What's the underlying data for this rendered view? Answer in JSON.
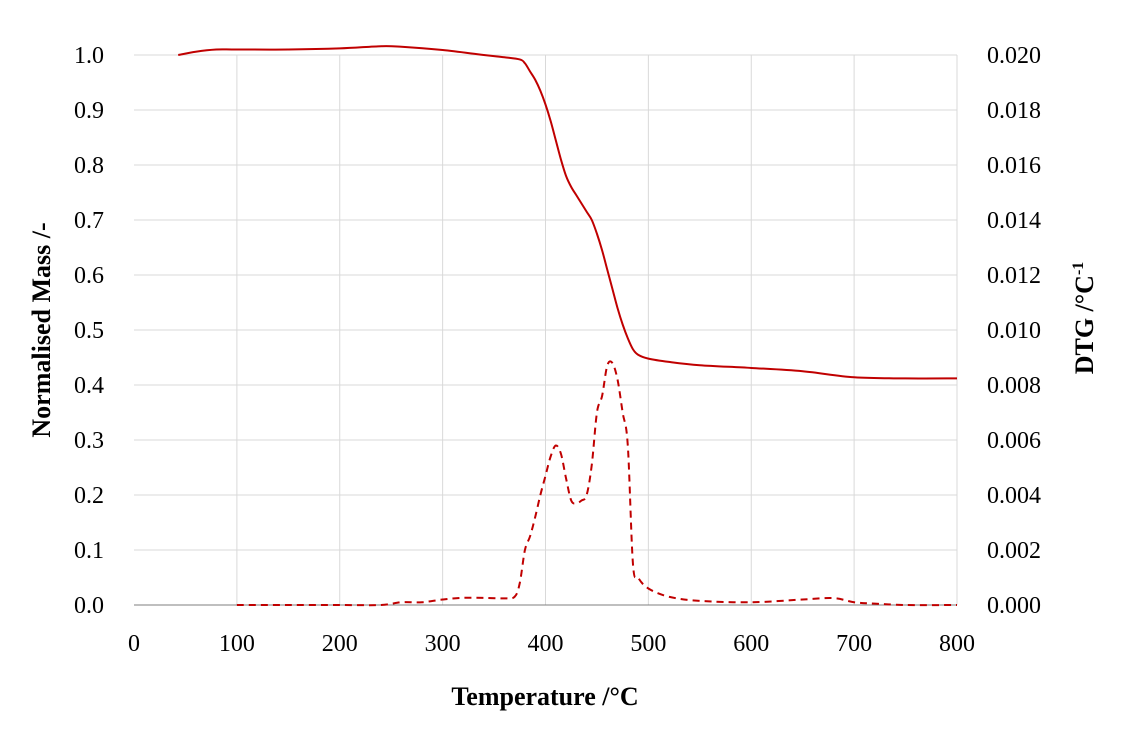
{
  "chart_data": {
    "type": "line",
    "title": "",
    "xlabel": "Temperature /°C",
    "ylabel": "Normalised Mass /-",
    "y2label_main": "DTG  /°C",
    "y2label_sup": "-1",
    "xlim": [
      0,
      800
    ],
    "ylim": [
      0,
      1.0
    ],
    "y2lim": [
      0,
      0.02
    ],
    "xticks": [
      "0",
      "100",
      "200",
      "300",
      "400",
      "500",
      "600",
      "700",
      "800"
    ],
    "yticks": [
      "0.0",
      "0.1",
      "0.2",
      "0.3",
      "0.4",
      "0.5",
      "0.6",
      "0.7",
      "0.8",
      "0.9",
      "1.0"
    ],
    "y2ticks": [
      "0.000",
      "0.002",
      "0.004",
      "0.006",
      "0.008",
      "0.010",
      "0.012",
      "0.014",
      "0.016",
      "0.018",
      "0.020"
    ],
    "grid": true,
    "colors": {
      "series": "#c00000",
      "grid": "#d9d9d9",
      "axis": "#7f7f7f"
    },
    "series": [
      {
        "axis": "left",
        "style": "solid",
        "x": [
          43,
          60,
          80,
          100,
          150,
          200,
          240,
          260,
          300,
          340,
          360,
          375,
          380,
          385,
          390,
          395,
          400,
          405,
          410,
          415,
          420,
          425,
          430,
          435,
          440,
          445,
          450,
          455,
          460,
          465,
          470,
          475,
          480,
          485,
          490,
          500,
          520,
          550,
          600,
          650,
          700,
          750,
          800
        ],
        "y": [
          1.0,
          1.006,
          1.01,
          1.01,
          1.01,
          1.012,
          1.016,
          1.015,
          1.009,
          1.0,
          0.996,
          0.992,
          0.985,
          0.97,
          0.955,
          0.935,
          0.91,
          0.88,
          0.845,
          0.81,
          0.78,
          0.76,
          0.745,
          0.73,
          0.715,
          0.7,
          0.675,
          0.645,
          0.61,
          0.575,
          0.54,
          0.51,
          0.485,
          0.465,
          0.455,
          0.448,
          0.442,
          0.436,
          0.431,
          0.425,
          0.414,
          0.412,
          0.412
        ]
      },
      {
        "axis": "right",
        "style": "dashed",
        "x": [
          100,
          150,
          200,
          240,
          260,
          280,
          300,
          320,
          340,
          360,
          370,
          375,
          380,
          385,
          390,
          395,
          400,
          405,
          410,
          415,
          420,
          425,
          430,
          435,
          440,
          445,
          450,
          455,
          460,
          465,
          470,
          475,
          480,
          485,
          490,
          500,
          520,
          550,
          600,
          650,
          680,
          700,
          720,
          750,
          800
        ],
        "y": [
          0.0,
          0.0,
          0.0,
          0.0,
          0.0001,
          0.0001,
          0.0002,
          0.00026,
          0.00026,
          0.00024,
          0.0003,
          0.0008,
          0.002,
          0.0025,
          0.0032,
          0.004,
          0.0047,
          0.0054,
          0.0058,
          0.0055,
          0.0046,
          0.0038,
          0.0037,
          0.0038,
          0.004,
          0.0051,
          0.007,
          0.0076,
          0.0087,
          0.0088,
          0.0082,
          0.007,
          0.0058,
          0.0015,
          0.001,
          0.0006,
          0.0003,
          0.00015,
          0.0001,
          0.0002,
          0.00025,
          0.0001,
          5e-05,
          0.0,
          0.0
        ]
      }
    ]
  }
}
